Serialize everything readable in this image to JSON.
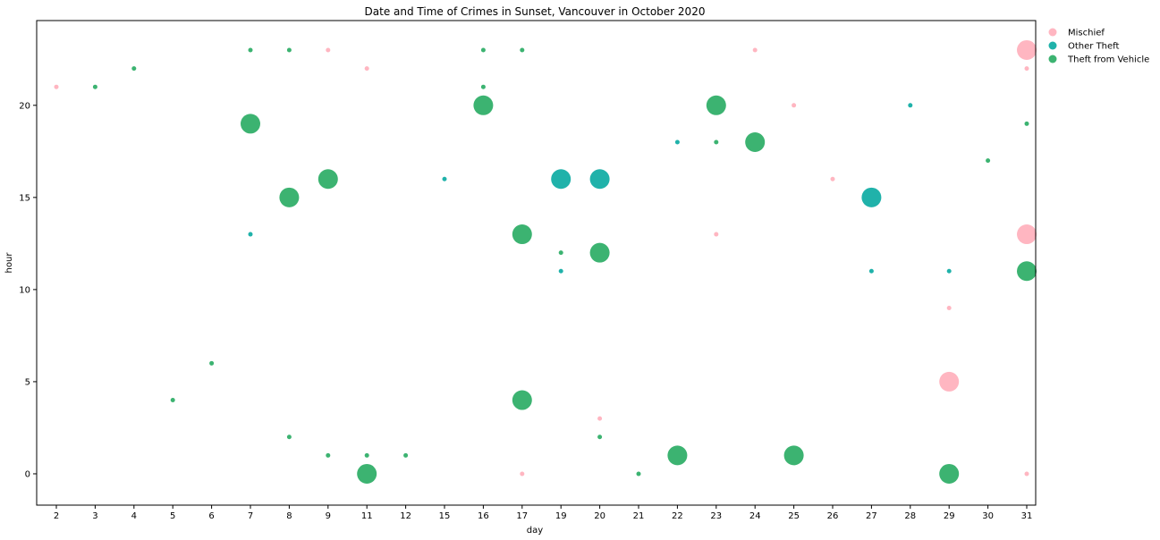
{
  "chart_data": {
    "type": "scatter",
    "title": "Date and Time of Crimes in Sunset, Vancouver in October 2020",
    "xlabel": "day",
    "ylabel": "hour",
    "categories": [
      "2",
      "3",
      "4",
      "5",
      "6",
      "7",
      "8",
      "9",
      "11",
      "12",
      "15",
      "16",
      "17",
      "19",
      "20",
      "21",
      "22",
      "23",
      "24",
      "25",
      "26",
      "27",
      "28",
      "29",
      "30",
      "31"
    ],
    "yticks": [
      0,
      5,
      10,
      15,
      20
    ],
    "ylim": [
      -1.7,
      24.6
    ],
    "grid": false,
    "legend_position": "outside-right-top",
    "series": [
      {
        "name": "Mischief",
        "color": "#ffb6c1",
        "points": [
          {
            "x": "2",
            "y": 21,
            "size": "small"
          },
          {
            "x": "9",
            "y": 23,
            "size": "small"
          },
          {
            "x": "11",
            "y": 22,
            "size": "small"
          },
          {
            "x": "17",
            "y": 0,
            "size": "small"
          },
          {
            "x": "20",
            "y": 3,
            "size": "small"
          },
          {
            "x": "23",
            "y": 13,
            "size": "small"
          },
          {
            "x": "24",
            "y": 23,
            "size": "small"
          },
          {
            "x": "25",
            "y": 20,
            "size": "small"
          },
          {
            "x": "26",
            "y": 16,
            "size": "small"
          },
          {
            "x": "29",
            "y": 5,
            "size": "large"
          },
          {
            "x": "29",
            "y": 9,
            "size": "small"
          },
          {
            "x": "31",
            "y": 23,
            "size": "large"
          },
          {
            "x": "31",
            "y": 22,
            "size": "small"
          },
          {
            "x": "31",
            "y": 13,
            "size": "large"
          },
          {
            "x": "31",
            "y": 0,
            "size": "small"
          }
        ]
      },
      {
        "name": "Other Theft",
        "color": "#20b2aa",
        "points": [
          {
            "x": "7",
            "y": 13,
            "size": "small"
          },
          {
            "x": "15",
            "y": 16,
            "size": "small"
          },
          {
            "x": "19",
            "y": 16,
            "size": "large"
          },
          {
            "x": "19",
            "y": 11,
            "size": "small"
          },
          {
            "x": "20",
            "y": 16,
            "size": "large"
          },
          {
            "x": "22",
            "y": 18,
            "size": "small"
          },
          {
            "x": "27",
            "y": 15,
            "size": "large"
          },
          {
            "x": "27",
            "y": 11,
            "size": "small"
          },
          {
            "x": "28",
            "y": 20,
            "size": "small"
          },
          {
            "x": "29",
            "y": 11,
            "size": "small"
          }
        ]
      },
      {
        "name": "Theft from Vehicle",
        "color": "#3cb371",
        "points": [
          {
            "x": "3",
            "y": 21,
            "size": "small"
          },
          {
            "x": "4",
            "y": 22,
            "size": "small"
          },
          {
            "x": "5",
            "y": 4,
            "size": "small"
          },
          {
            "x": "6",
            "y": 6,
            "size": "small"
          },
          {
            "x": "7",
            "y": 23,
            "size": "small"
          },
          {
            "x": "7",
            "y": 19,
            "size": "large"
          },
          {
            "x": "8",
            "y": 23,
            "size": "small"
          },
          {
            "x": "8",
            "y": 15,
            "size": "large"
          },
          {
            "x": "8",
            "y": 2,
            "size": "small"
          },
          {
            "x": "9",
            "y": 16,
            "size": "large"
          },
          {
            "x": "9",
            "y": 1,
            "size": "small"
          },
          {
            "x": "11",
            "y": 1,
            "size": "small"
          },
          {
            "x": "11",
            "y": 0,
            "size": "large"
          },
          {
            "x": "12",
            "y": 1,
            "size": "small"
          },
          {
            "x": "16",
            "y": 23,
            "size": "small"
          },
          {
            "x": "16",
            "y": 21,
            "size": "small"
          },
          {
            "x": "16",
            "y": 20,
            "size": "large"
          },
          {
            "x": "17",
            "y": 23,
            "size": "small"
          },
          {
            "x": "17",
            "y": 13,
            "size": "large"
          },
          {
            "x": "17",
            "y": 4,
            "size": "large"
          },
          {
            "x": "19",
            "y": 12,
            "size": "small"
          },
          {
            "x": "20",
            "y": 12,
            "size": "large"
          },
          {
            "x": "20",
            "y": 2,
            "size": "small"
          },
          {
            "x": "21",
            "y": 0,
            "size": "small"
          },
          {
            "x": "22",
            "y": 1,
            "size": "large"
          },
          {
            "x": "23",
            "y": 20,
            "size": "large"
          },
          {
            "x": "23",
            "y": 18,
            "size": "small"
          },
          {
            "x": "24",
            "y": 18,
            "size": "large"
          },
          {
            "x": "25",
            "y": 1,
            "size": "large"
          },
          {
            "x": "29",
            "y": 0,
            "size": "large"
          },
          {
            "x": "30",
            "y": 17,
            "size": "small"
          },
          {
            "x": "31",
            "y": 19,
            "size": "small"
          },
          {
            "x": "31",
            "y": 11,
            "size": "large"
          }
        ]
      }
    ]
  }
}
